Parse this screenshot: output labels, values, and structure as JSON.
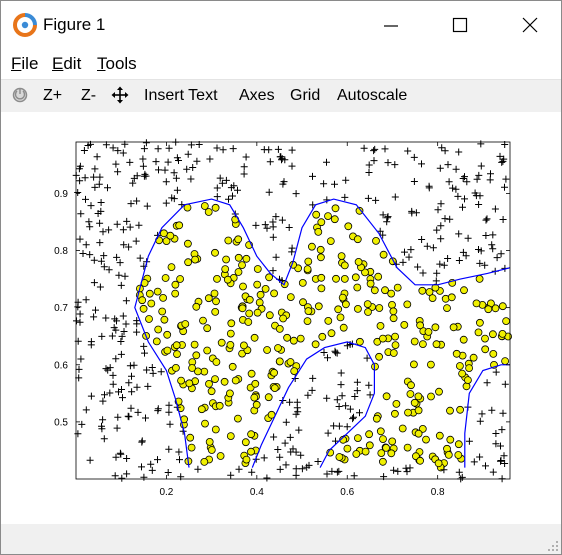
{
  "window": {
    "title": "Figure 1",
    "icon": "octave-icon",
    "controls": [
      "minimize-icon",
      "maximize-icon",
      "close-icon"
    ]
  },
  "menu": {
    "file_ul": "F",
    "file_rest": "ile",
    "edit_ul": "E",
    "edit_rest": "dit",
    "tools_ul": "T",
    "tools_rest": "ools"
  },
  "toolbar": {
    "rotate_icon": "rotate-icon",
    "zoom_in": "Z+",
    "zoom_out": "Z-",
    "pan_icon": "pan-icon",
    "insert_text": "Insert Text",
    "axes": "Axes",
    "grid": "Grid",
    "autoscale": "Autoscale"
  },
  "chart_data": {
    "type": "scatter",
    "title": "",
    "xlabel": "",
    "ylabel": "",
    "xlim": [
      0.0,
      0.96
    ],
    "ylim": [
      0.4,
      0.99
    ],
    "xticks": [
      "0.2",
      "0.4",
      "0.6",
      "0.8"
    ],
    "xtick_values": [
      0.2,
      0.4,
      0.6,
      0.8
    ],
    "yticks": [
      "0.5",
      "0.6",
      "0.7",
      "0.8",
      "0.9"
    ],
    "ytick_values": [
      0.5,
      0.6,
      0.7,
      0.8,
      0.9
    ],
    "grid": false,
    "colors": {
      "positive_face": "#f0f000",
      "negative": "#000000",
      "boundary": "#0000ff"
    },
    "series": [
      {
        "marker": "o",
        "color": "#f0f000",
        "seed": 7,
        "count": 400
      },
      {
        "marker": "+",
        "color": "#000000",
        "seed": 11,
        "count": 460
      },
      {
        "marker": "line",
        "color": "#0000ff"
      }
    ],
    "decision_boundary": [
      [
        [
          0.14,
          0.73
        ],
        [
          0.13,
          0.7
        ],
        [
          0.16,
          0.64
        ],
        [
          0.2,
          0.59
        ],
        [
          0.22,
          0.54
        ],
        [
          0.24,
          0.48
        ],
        [
          0.25,
          0.42
        ]
      ],
      [
        [
          0.14,
          0.73
        ],
        [
          0.16,
          0.79
        ],
        [
          0.19,
          0.84
        ],
        [
          0.24,
          0.88
        ],
        [
          0.3,
          0.89
        ],
        [
          0.34,
          0.88
        ],
        [
          0.37,
          0.84
        ],
        [
          0.4,
          0.79
        ],
        [
          0.43,
          0.76
        ],
        [
          0.46,
          0.74
        ],
        [
          0.48,
          0.78
        ],
        [
          0.5,
          0.84
        ],
        [
          0.53,
          0.88
        ],
        [
          0.57,
          0.89
        ],
        [
          0.62,
          0.88
        ],
        [
          0.67,
          0.83
        ],
        [
          0.71,
          0.77
        ],
        [
          0.75,
          0.74
        ],
        [
          0.8,
          0.74
        ],
        [
          0.85,
          0.75
        ],
        [
          0.91,
          0.76
        ],
        [
          0.96,
          0.77
        ]
      ],
      [
        [
          0.39,
          0.42
        ],
        [
          0.41,
          0.46
        ],
        [
          0.44,
          0.51
        ],
        [
          0.47,
          0.56
        ],
        [
          0.51,
          0.61
        ],
        [
          0.55,
          0.63
        ],
        [
          0.6,
          0.64
        ],
        [
          0.64,
          0.63
        ],
        [
          0.66,
          0.6
        ],
        [
          0.66,
          0.55
        ],
        [
          0.64,
          0.51
        ],
        [
          0.6,
          0.48
        ],
        [
          0.56,
          0.45
        ],
        [
          0.54,
          0.42
        ]
      ],
      [
        [
          0.86,
          0.42
        ],
        [
          0.86,
          0.48
        ],
        [
          0.87,
          0.55
        ],
        [
          0.9,
          0.59
        ],
        [
          0.94,
          0.6
        ],
        [
          0.96,
          0.6
        ]
      ]
    ]
  }
}
